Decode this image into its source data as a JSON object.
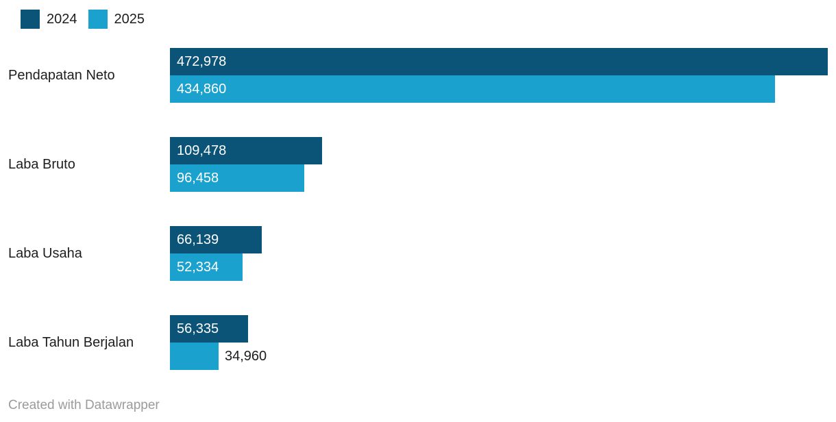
{
  "chart_data": {
    "type": "bar",
    "orientation": "horizontal",
    "title": "",
    "categories": [
      "Pendapatan Neto",
      "Laba Bruto",
      "Laba Usaha",
      "Laba Tahun Berjalan"
    ],
    "series": [
      {
        "name": "2024",
        "color": "#0b5377",
        "values": [
          472978,
          109478,
          66139,
          56335
        ],
        "value_labels": [
          "472,978",
          "109,478",
          "66,139",
          "56,335"
        ]
      },
      {
        "name": "2025",
        "color": "#1ba1ce",
        "values": [
          434860,
          96458,
          52334,
          34960
        ],
        "value_labels": [
          "434,860",
          "96,458",
          "52,334",
          "34,960"
        ]
      }
    ],
    "xlim": [
      0,
      472978
    ],
    "legend_position": "top-left",
    "grid": false,
    "value_label_style": "inside bar start in white; outside right of bar in dark when bar too short"
  },
  "footer": {
    "text": "Created with Datawrapper"
  },
  "colors": {
    "background": "#ffffff",
    "text": "#1d1d1d",
    "value_label_inside": "#ffffff",
    "footer_text": "#9b9b9b"
  }
}
